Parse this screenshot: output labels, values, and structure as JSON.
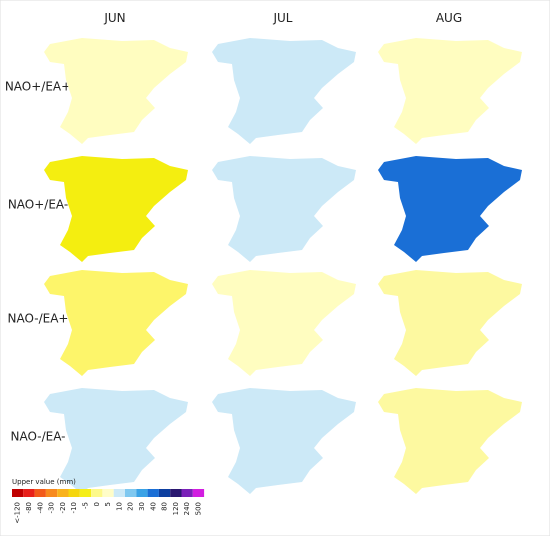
{
  "columns": [
    "JUN",
    "JUL",
    "AUG"
  ],
  "rows": [
    "NAO+/EA+",
    "NAO+/EA-",
    "NAO-/EA+",
    "NAO-/EA-"
  ],
  "map_colors": [
    [
      "#fffdc0",
      "#cce9f7",
      "#fffdc0"
    ],
    [
      "#f4ee10",
      "#cce9f7",
      "#1a6fd6"
    ],
    [
      "#fdf56a",
      "#fffdc0",
      "#fdf9a0"
    ],
    [
      "#cce9f7",
      "#cce9f7",
      "#fdf9a0"
    ]
  ],
  "legend": {
    "title": "Upper value (mm)",
    "items": [
      {
        "label": "<-120",
        "color": "#c00000"
      },
      {
        "label": "-80",
        "color": "#e8201a"
      },
      {
        "label": "-40",
        "color": "#f25a1a"
      },
      {
        "label": "-30",
        "color": "#f78a1e"
      },
      {
        "label": "-20",
        "color": "#f9b21c"
      },
      {
        "label": "-10",
        "color": "#f5d60e"
      },
      {
        "label": "-5",
        "color": "#f5ee18"
      },
      {
        "label": "0",
        "color": "#fdf98a"
      },
      {
        "label": "5",
        "color": "#fffdc8"
      },
      {
        "label": "10",
        "color": "#cce9f7"
      },
      {
        "label": "20",
        "color": "#7fc8f0"
      },
      {
        "label": "30",
        "color": "#3aa2e6"
      },
      {
        "label": "40",
        "color": "#1a6fd6"
      },
      {
        "label": "80",
        "color": "#0d3fa0"
      },
      {
        "label": "120",
        "color": "#2a1870"
      },
      {
        "label": "240",
        "color": "#7a20b8"
      },
      {
        "label": "500",
        "color": "#d21ee0"
      }
    ]
  }
}
